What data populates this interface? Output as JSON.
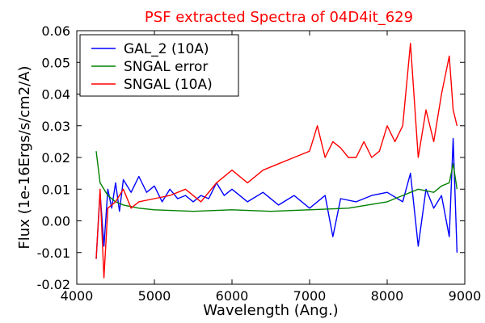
{
  "chart_data": {
    "type": "line",
    "title": "PSF extracted Spectra of 04D4it_629",
    "xlabel": "Wavelength (Ang.)",
    "ylabel": "Flux (1e-16Ergs/s/cm2/A)",
    "xlim": [
      4000,
      9000
    ],
    "ylim": [
      -0.02,
      0.06
    ],
    "xticks": [
      4000,
      5000,
      6000,
      7000,
      8000,
      9000
    ],
    "xtick_labels": [
      "4000",
      "5000",
      "6000",
      "7000",
      "8000",
      "9000"
    ],
    "yticks": [
      -0.02,
      -0.01,
      0.0,
      0.01,
      0.02,
      0.03,
      0.04,
      0.05,
      0.06
    ],
    "ytick_labels": [
      "-0.02",
      "-0.01",
      "0.00",
      "0.01",
      "0.02",
      "0.03",
      "0.04",
      "0.05",
      "0.06"
    ],
    "grid": false,
    "legend_position": "top-left",
    "series": [
      {
        "name": "GAL_2 (10A)",
        "color": "#0000ff",
        "x": [
          4250,
          4300,
          4350,
          4400,
          4450,
          4500,
          4550,
          4600,
          4700,
          4800,
          4900,
          5000,
          5100,
          5200,
          5300,
          5400,
          5500,
          5600,
          5700,
          5800,
          5900,
          6000,
          6200,
          6400,
          6600,
          6800,
          7000,
          7200,
          7300,
          7400,
          7600,
          7800,
          8000,
          8200,
          8300,
          8400,
          8500,
          8600,
          8700,
          8800,
          8850,
          8900
        ],
        "y": [
          -0.012,
          0.009,
          -0.008,
          0.01,
          0.004,
          0.012,
          0.003,
          0.013,
          0.009,
          0.014,
          0.009,
          0.011,
          0.006,
          0.01,
          0.007,
          0.008,
          0.006,
          0.008,
          0.007,
          0.012,
          0.008,
          0.01,
          0.006,
          0.009,
          0.005,
          0.008,
          0.004,
          0.008,
          -0.005,
          0.007,
          0.006,
          0.008,
          0.009,
          0.006,
          0.015,
          -0.008,
          0.01,
          0.004,
          0.008,
          -0.005,
          0.026,
          -0.01
        ]
      },
      {
        "name": "SNGAL error",
        "color": "#008000",
        "x": [
          4250,
          4300,
          4400,
          4500,
          4600,
          4800,
          5000,
          5500,
          6000,
          6500,
          7000,
          7500,
          8000,
          8200,
          8400,
          8600,
          8700,
          8800,
          8850,
          8900
        ],
        "y": [
          0.022,
          0.012,
          0.008,
          0.006,
          0.005,
          0.004,
          0.0035,
          0.003,
          0.0035,
          0.003,
          0.0035,
          0.004,
          0.006,
          0.008,
          0.01,
          0.009,
          0.011,
          0.012,
          0.018,
          0.01
        ]
      },
      {
        "name": "SNGAL (10A)",
        "color": "#ff0000",
        "x": [
          4250,
          4300,
          4350,
          4400,
          4500,
          4600,
          4700,
          4800,
          5000,
          5200,
          5400,
          5600,
          5800,
          6000,
          6200,
          6400,
          6600,
          6800,
          7000,
          7100,
          7200,
          7300,
          7400,
          7500,
          7600,
          7700,
          7800,
          7900,
          8000,
          8100,
          8200,
          8300,
          8400,
          8500,
          8600,
          8700,
          8800,
          8850,
          8900
        ],
        "y": [
          -0.012,
          0.01,
          -0.018,
          0.004,
          0.006,
          0.01,
          0.004,
          0.006,
          0.007,
          0.008,
          0.01,
          0.006,
          0.012,
          0.016,
          0.012,
          0.016,
          0.018,
          0.02,
          0.022,
          0.03,
          0.02,
          0.025,
          0.023,
          0.02,
          0.02,
          0.025,
          0.02,
          0.022,
          0.03,
          0.025,
          0.03,
          0.056,
          0.02,
          0.035,
          0.025,
          0.04,
          0.052,
          0.035,
          0.03
        ]
      }
    ]
  }
}
